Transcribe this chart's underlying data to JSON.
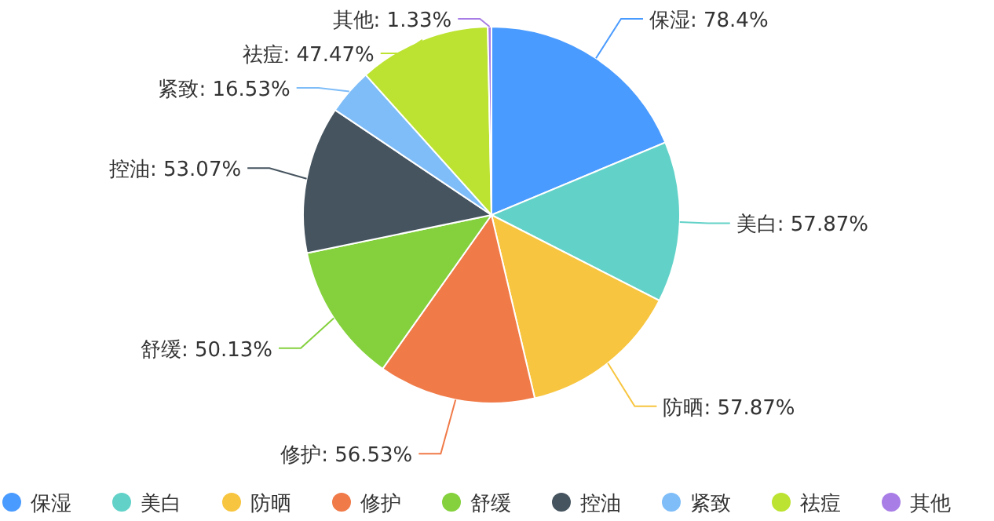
{
  "chart_data": {
    "type": "pie",
    "categories": [
      "保湿",
      "美白",
      "防晒",
      "修护",
      "舒缓",
      "控油",
      "紧致",
      "祛痘",
      "其他"
    ],
    "values": [
      78.4,
      57.87,
      57.87,
      56.53,
      50.13,
      53.07,
      16.53,
      47.47,
      1.33
    ],
    "value_labels": [
      "保湿: 78.4%",
      "美白: 57.87%",
      "防晒: 57.87%",
      "修护: 56.53%",
      "舒缓: 50.13%",
      "控油: 53.07%",
      "紧致: 16.53%",
      "祛痘: 47.47%",
      "其他: 1.33%"
    ],
    "colors": [
      "#4a9bff",
      "#62d2c8",
      "#f7c53f",
      "#f07a48",
      "#84d13d",
      "#46545f",
      "#7fbdf8",
      "#bce331",
      "#a87ee6"
    ],
    "legend": "bottom"
  }
}
